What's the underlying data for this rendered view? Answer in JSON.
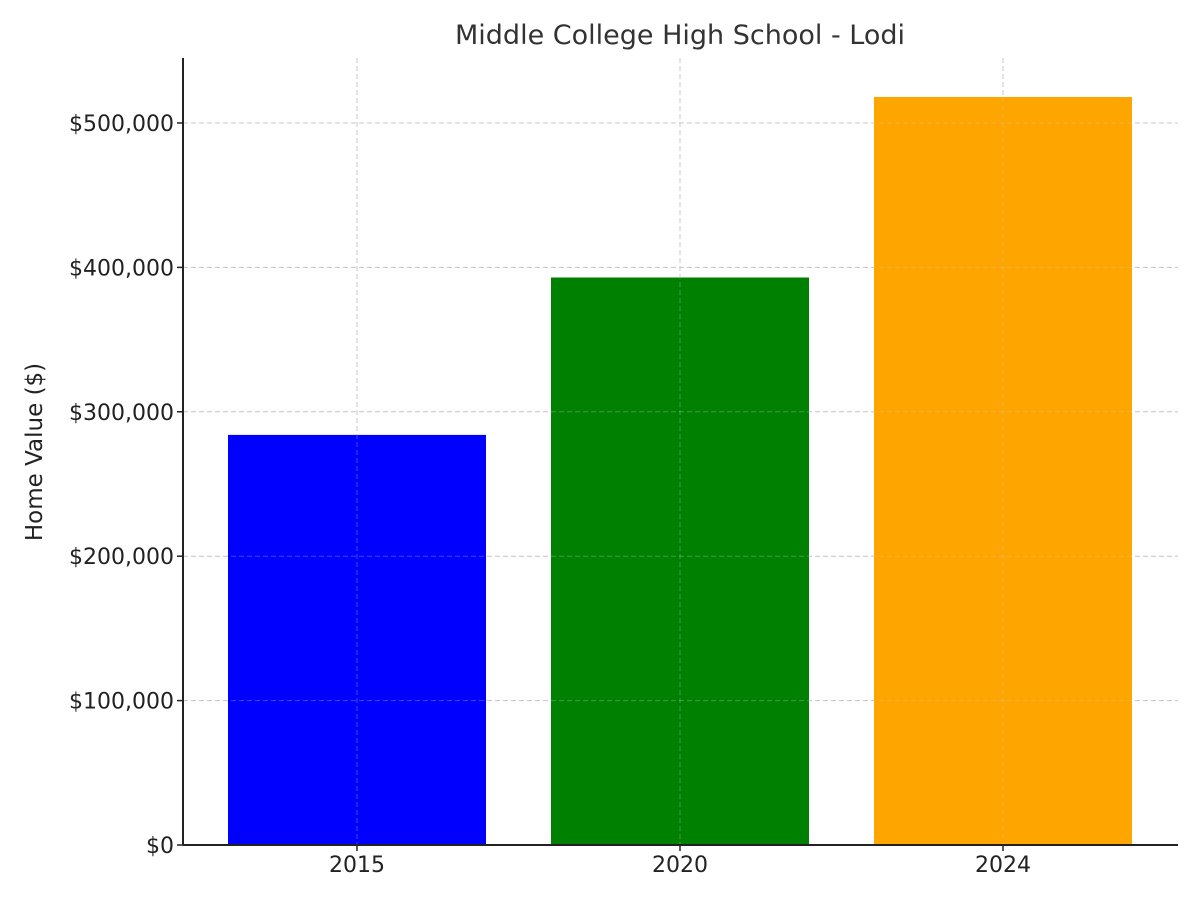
{
  "chart_data": {
    "type": "bar",
    "title": "Middle College High School - Lodi",
    "xlabel": "",
    "ylabel": "Home Value ($)",
    "categories": [
      "2015",
      "2020",
      "2024"
    ],
    "values": [
      284000,
      393000,
      518000
    ],
    "colors": [
      "#0000ff",
      "#008000",
      "#ffa500"
    ],
    "ylim": [
      0,
      545000
    ],
    "yticks": [
      0,
      100000,
      200000,
      300000,
      400000,
      500000
    ],
    "ytick_labels": [
      "$0",
      "$100,000",
      "$200,000",
      "$300,000",
      "$400,000",
      "$500,000"
    ],
    "grid": true,
    "legend": "none"
  }
}
